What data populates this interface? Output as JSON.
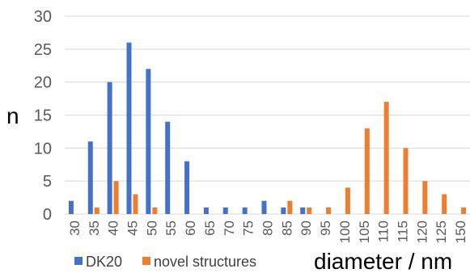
{
  "chart_data": {
    "type": "bar",
    "categories": [
      "30",
      "35",
      "40",
      "45",
      "50",
      "55",
      "60",
      "65",
      "70",
      "75",
      "80",
      "85",
      "90",
      "95",
      "100",
      "105",
      "110",
      "115",
      "120",
      "125",
      "150"
    ],
    "series": [
      {
        "name": "DK20",
        "color": "#4472C4",
        "values": [
          2,
          11,
          20,
          26,
          22,
          14,
          8,
          1,
          1,
          1,
          2,
          1,
          1,
          0,
          0,
          0,
          0,
          0,
          0,
          0,
          0
        ]
      },
      {
        "name": "novel structures",
        "color": "#ED7D31",
        "values": [
          0,
          1,
          5,
          3,
          1,
          0,
          0,
          0,
          0,
          0,
          0,
          2,
          1,
          1,
          4,
          13,
          17,
          10,
          5,
          3,
          1
        ]
      }
    ],
    "xlabel": "diameter / nm",
    "ylabel": "n",
    "ylim": [
      0,
      30
    ],
    "yticks": [
      "0",
      "5",
      "10",
      "15",
      "20",
      "25",
      "30"
    ],
    "grid": true,
    "legend": "bottom-left"
  }
}
